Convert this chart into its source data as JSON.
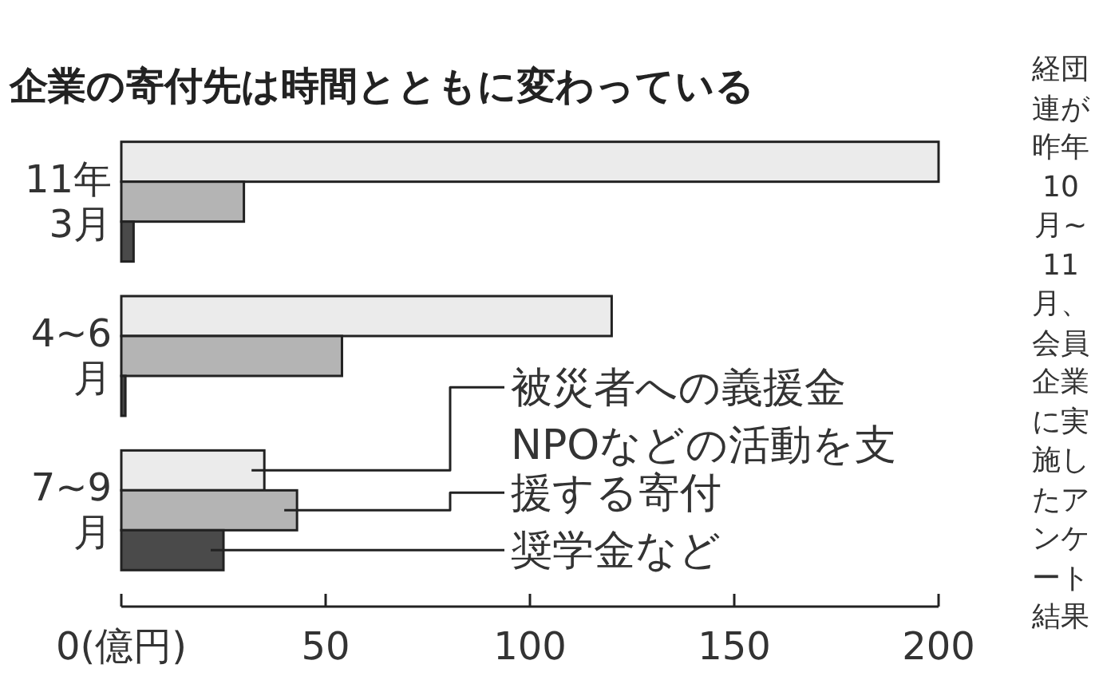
{
  "chart_data": {
    "type": "bar",
    "orientation": "horizontal",
    "title": "企業の寄付先は時間とともに変わっている",
    "categories": [
      "11年\n3月",
      "4~6\n月",
      "7~9\n月"
    ],
    "series": [
      {
        "name": "被災者への義援金",
        "color": "#ebebeb",
        "values": [
          200,
          120,
          35
        ]
      },
      {
        "name": "NPOなどの活動を支援する寄付",
        "color": "#b4b4b4",
        "values": [
          30,
          54,
          43
        ]
      },
      {
        "name": "奨学金など",
        "color": "#4a4a4a",
        "values": [
          3,
          1,
          25
        ]
      }
    ],
    "xlim": [
      0,
      200
    ],
    "xticks": [
      {
        "value": 0,
        "label": "0(億円)"
      },
      50,
      100,
      150,
      200
    ],
    "annotations": [
      "経団連が昨年10月~11月、会員企業に実施したアンケート結果"
    ],
    "grid": false
  }
}
